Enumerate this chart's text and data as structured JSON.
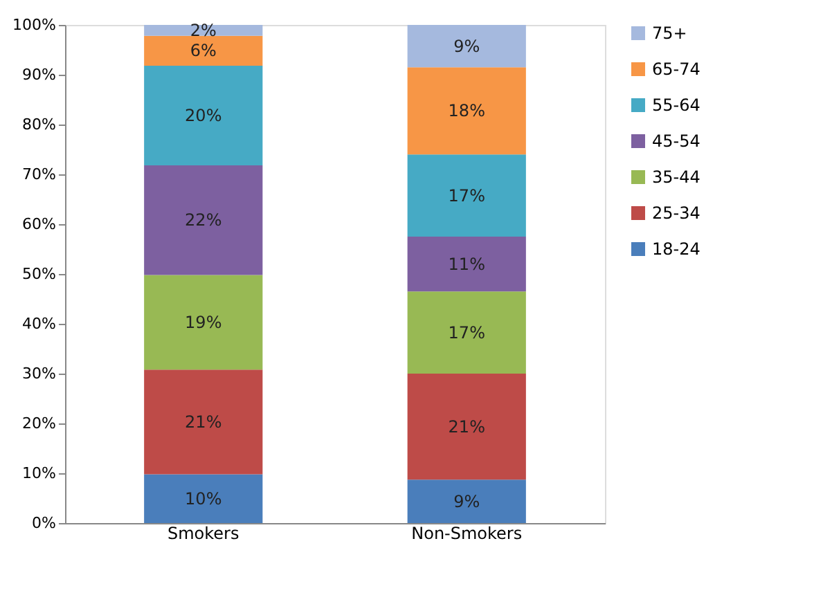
{
  "chart_data": {
    "type": "bar",
    "stacked": true,
    "categories": [
      "Smokers",
      "Non-Smokers"
    ],
    "series": [
      {
        "name": "18-24",
        "color": "#4a7ebb",
        "values": [
          9.8,
          8.7
        ],
        "value_labels": [
          "10%",
          "9%"
        ]
      },
      {
        "name": "25-34",
        "color": "#be4b48",
        "values": [
          21,
          21.3
        ],
        "value_labels": [
          "21%",
          "21%"
        ]
      },
      {
        "name": "35-44",
        "color": "#98b954",
        "values": [
          19,
          16.5
        ],
        "value_labels": [
          "19%",
          "17%"
        ]
      },
      {
        "name": "45-54",
        "color": "#7d60a0",
        "values": [
          22,
          11
        ],
        "value_labels": [
          "22%",
          "11%"
        ]
      },
      {
        "name": "55-64",
        "color": "#46aac5",
        "values": [
          20,
          16.5
        ],
        "value_labels": [
          "20%",
          "17%"
        ]
      },
      {
        "name": "65-74",
        "color": "#f79646",
        "values": [
          6,
          17.5
        ],
        "value_labels": [
          "6%",
          "18%"
        ]
      },
      {
        "name": "75+",
        "color": "#a5b9de",
        "values": [
          2.2,
          8.5
        ],
        "value_labels": [
          "2%",
          "9%"
        ]
      }
    ],
    "ylim": [
      0,
      100
    ],
    "yticks": [
      {
        "value": 0,
        "label": "0%"
      },
      {
        "value": 10,
        "label": "10%"
      },
      {
        "value": 20,
        "label": "20%"
      },
      {
        "value": 30,
        "label": "30%"
      },
      {
        "value": 40,
        "label": "40%"
      },
      {
        "value": 50,
        "label": "50%"
      },
      {
        "value": 60,
        "label": "60%"
      },
      {
        "value": 70,
        "label": "70%"
      },
      {
        "value": 80,
        "label": "80%"
      },
      {
        "value": 90,
        "label": "90%"
      },
      {
        "value": 100,
        "label": "100%"
      }
    ],
    "grid": false,
    "legend": "right"
  }
}
